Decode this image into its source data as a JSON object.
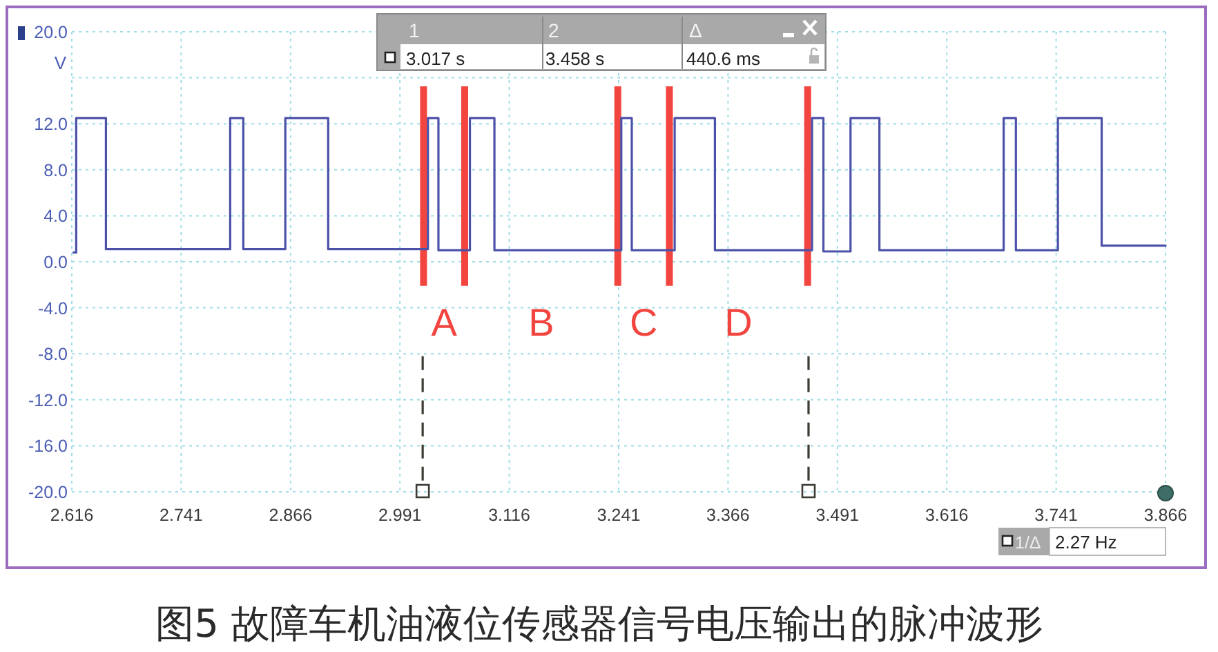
{
  "chart_data": {
    "type": "line",
    "title": "图5 故障车机油液位传感器信号电压输出的脉冲波形",
    "ylabel": "V",
    "x": [
      2.618,
      2.621,
      2.621,
      2.655,
      2.655,
      2.797,
      2.797,
      2.812,
      2.812,
      2.86,
      2.86,
      2.909,
      2.909,
      3.023,
      3.023,
      3.035,
      3.035,
      3.071,
      3.071,
      3.099,
      3.099,
      3.244,
      3.244,
      3.256,
      3.256,
      3.305,
      3.305,
      3.351,
      3.351,
      3.462,
      3.462,
      3.475,
      3.475,
      3.506,
      3.506,
      3.539,
      3.539,
      3.681,
      3.681,
      3.695,
      3.695,
      3.743,
      3.743,
      3.793,
      3.793,
      3.866
    ],
    "values": [
      0.8,
      0.8,
      12.5,
      12.5,
      1.1,
      1.1,
      12.5,
      12.5,
      1.1,
      1.1,
      12.5,
      12.5,
      1.1,
      1.1,
      12.5,
      12.5,
      1.0,
      1.0,
      12.5,
      12.5,
      1.0,
      1.0,
      12.5,
      12.5,
      1.0,
      1.0,
      12.5,
      12.5,
      1.0,
      1.0,
      12.5,
      12.5,
      0.9,
      0.9,
      12.5,
      12.5,
      1.0,
      1.0,
      12.5,
      12.5,
      1.0,
      1.0,
      12.5,
      12.5,
      1.4,
      1.4
    ],
    "color": "#4b52a8",
    "xlim": [
      2.616,
      3.866
    ],
    "ylim": [
      -20,
      20
    ],
    "xticks": [
      2.616,
      2.741,
      2.866,
      2.991,
      3.116,
      3.241,
      3.366,
      3.491,
      3.616,
      3.741,
      3.866
    ],
    "yticks": [
      {
        "value": 20,
        "label": "20.0"
      },
      {
        "value": 16,
        "label": null
      },
      {
        "value": 12,
        "label": "12.0"
      },
      {
        "value": 8,
        "label": "8.0"
      },
      {
        "value": 4,
        "label": "4.0"
      },
      {
        "value": 0,
        "label": "0.0"
      },
      {
        "value": -4,
        "label": "-4.0"
      },
      {
        "value": -8,
        "label": "-8.0"
      },
      {
        "value": -12,
        "label": "-12.0"
      },
      {
        "value": -16,
        "label": "-16.0"
      },
      {
        "value": -20,
        "label": "-20.0"
      }
    ],
    "grid": true,
    "ref_lines": [
      {
        "axis": "x",
        "value": 3.017,
        "color": "#3c3c34",
        "line_style": "dashed"
      },
      {
        "axis": "x",
        "value": 3.458,
        "color": "#3c3c34",
        "line_style": "dashed"
      },
      {
        "axis": "x",
        "value": 3.018,
        "color": "#f2453f",
        "line_style": "solid"
      },
      {
        "axis": "x",
        "value": 3.065,
        "color": "#f2453f",
        "line_style": "solid"
      },
      {
        "axis": "x",
        "value": 3.24,
        "color": "#f2453f",
        "line_style": "solid"
      },
      {
        "axis": "x",
        "value": 3.299,
        "color": "#f2453f",
        "line_style": "solid"
      },
      {
        "axis": "x",
        "value": 3.457,
        "color": "#f2453f",
        "line_style": "solid"
      }
    ],
    "annotations": [
      "1",
      "2",
      "Δ",
      "3.017 s",
      "3.458 s",
      "440.6 ms",
      "1/Δ",
      "2.27 Hz",
      "A",
      "B",
      "C",
      "D"
    ]
  }
}
